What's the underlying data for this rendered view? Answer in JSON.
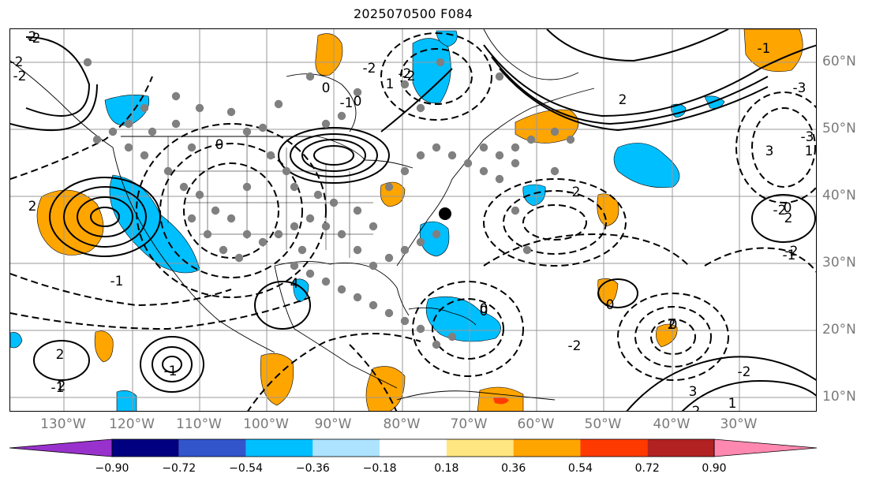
{
  "title": "2025070500 F084",
  "longitude_labels": [
    "130°W",
    "120°W",
    "110°W",
    "100°W",
    "90°W",
    "80°W",
    "70°W",
    "60°W",
    "50°W",
    "40°W",
    "30°W"
  ],
  "latitude_labels": [
    "60°N",
    "50°N",
    "40°N",
    "30°N",
    "20°N",
    "10°N"
  ],
  "colorbar": {
    "ticks": [
      "−0.90",
      "−0.72",
      "−0.54",
      "−0.36",
      "−0.18",
      "0.18",
      "0.36",
      "0.54",
      "0.72",
      "0.90"
    ],
    "colors": [
      "#9932cc",
      "#000080",
      "#3355cc",
      "#00bfff",
      "#aee3ff",
      "#ffffff",
      "#ffe680",
      "#ffa500",
      "#ff3a00",
      "#b22222",
      "#ff88b0"
    ]
  },
  "contour_labels": [
    "2",
    "-2",
    "0",
    "-1",
    "1",
    "-2",
    "0",
    "-1",
    "-2",
    "2",
    "-2",
    "0",
    "-2",
    "2",
    "-1",
    "3",
    "-2",
    "-2",
    "0",
    "0",
    "1",
    "-2",
    "2",
    "-2",
    "0",
    "-2",
    "-2",
    "0",
    "-1",
    "2",
    "2",
    "-3",
    "1",
    "-1",
    "2",
    "-1",
    "4",
    "-3",
    "3",
    "-2",
    "0"
  ],
  "colors": {
    "axis_label": "#7a7a7a",
    "grid": "#999999"
  }
}
